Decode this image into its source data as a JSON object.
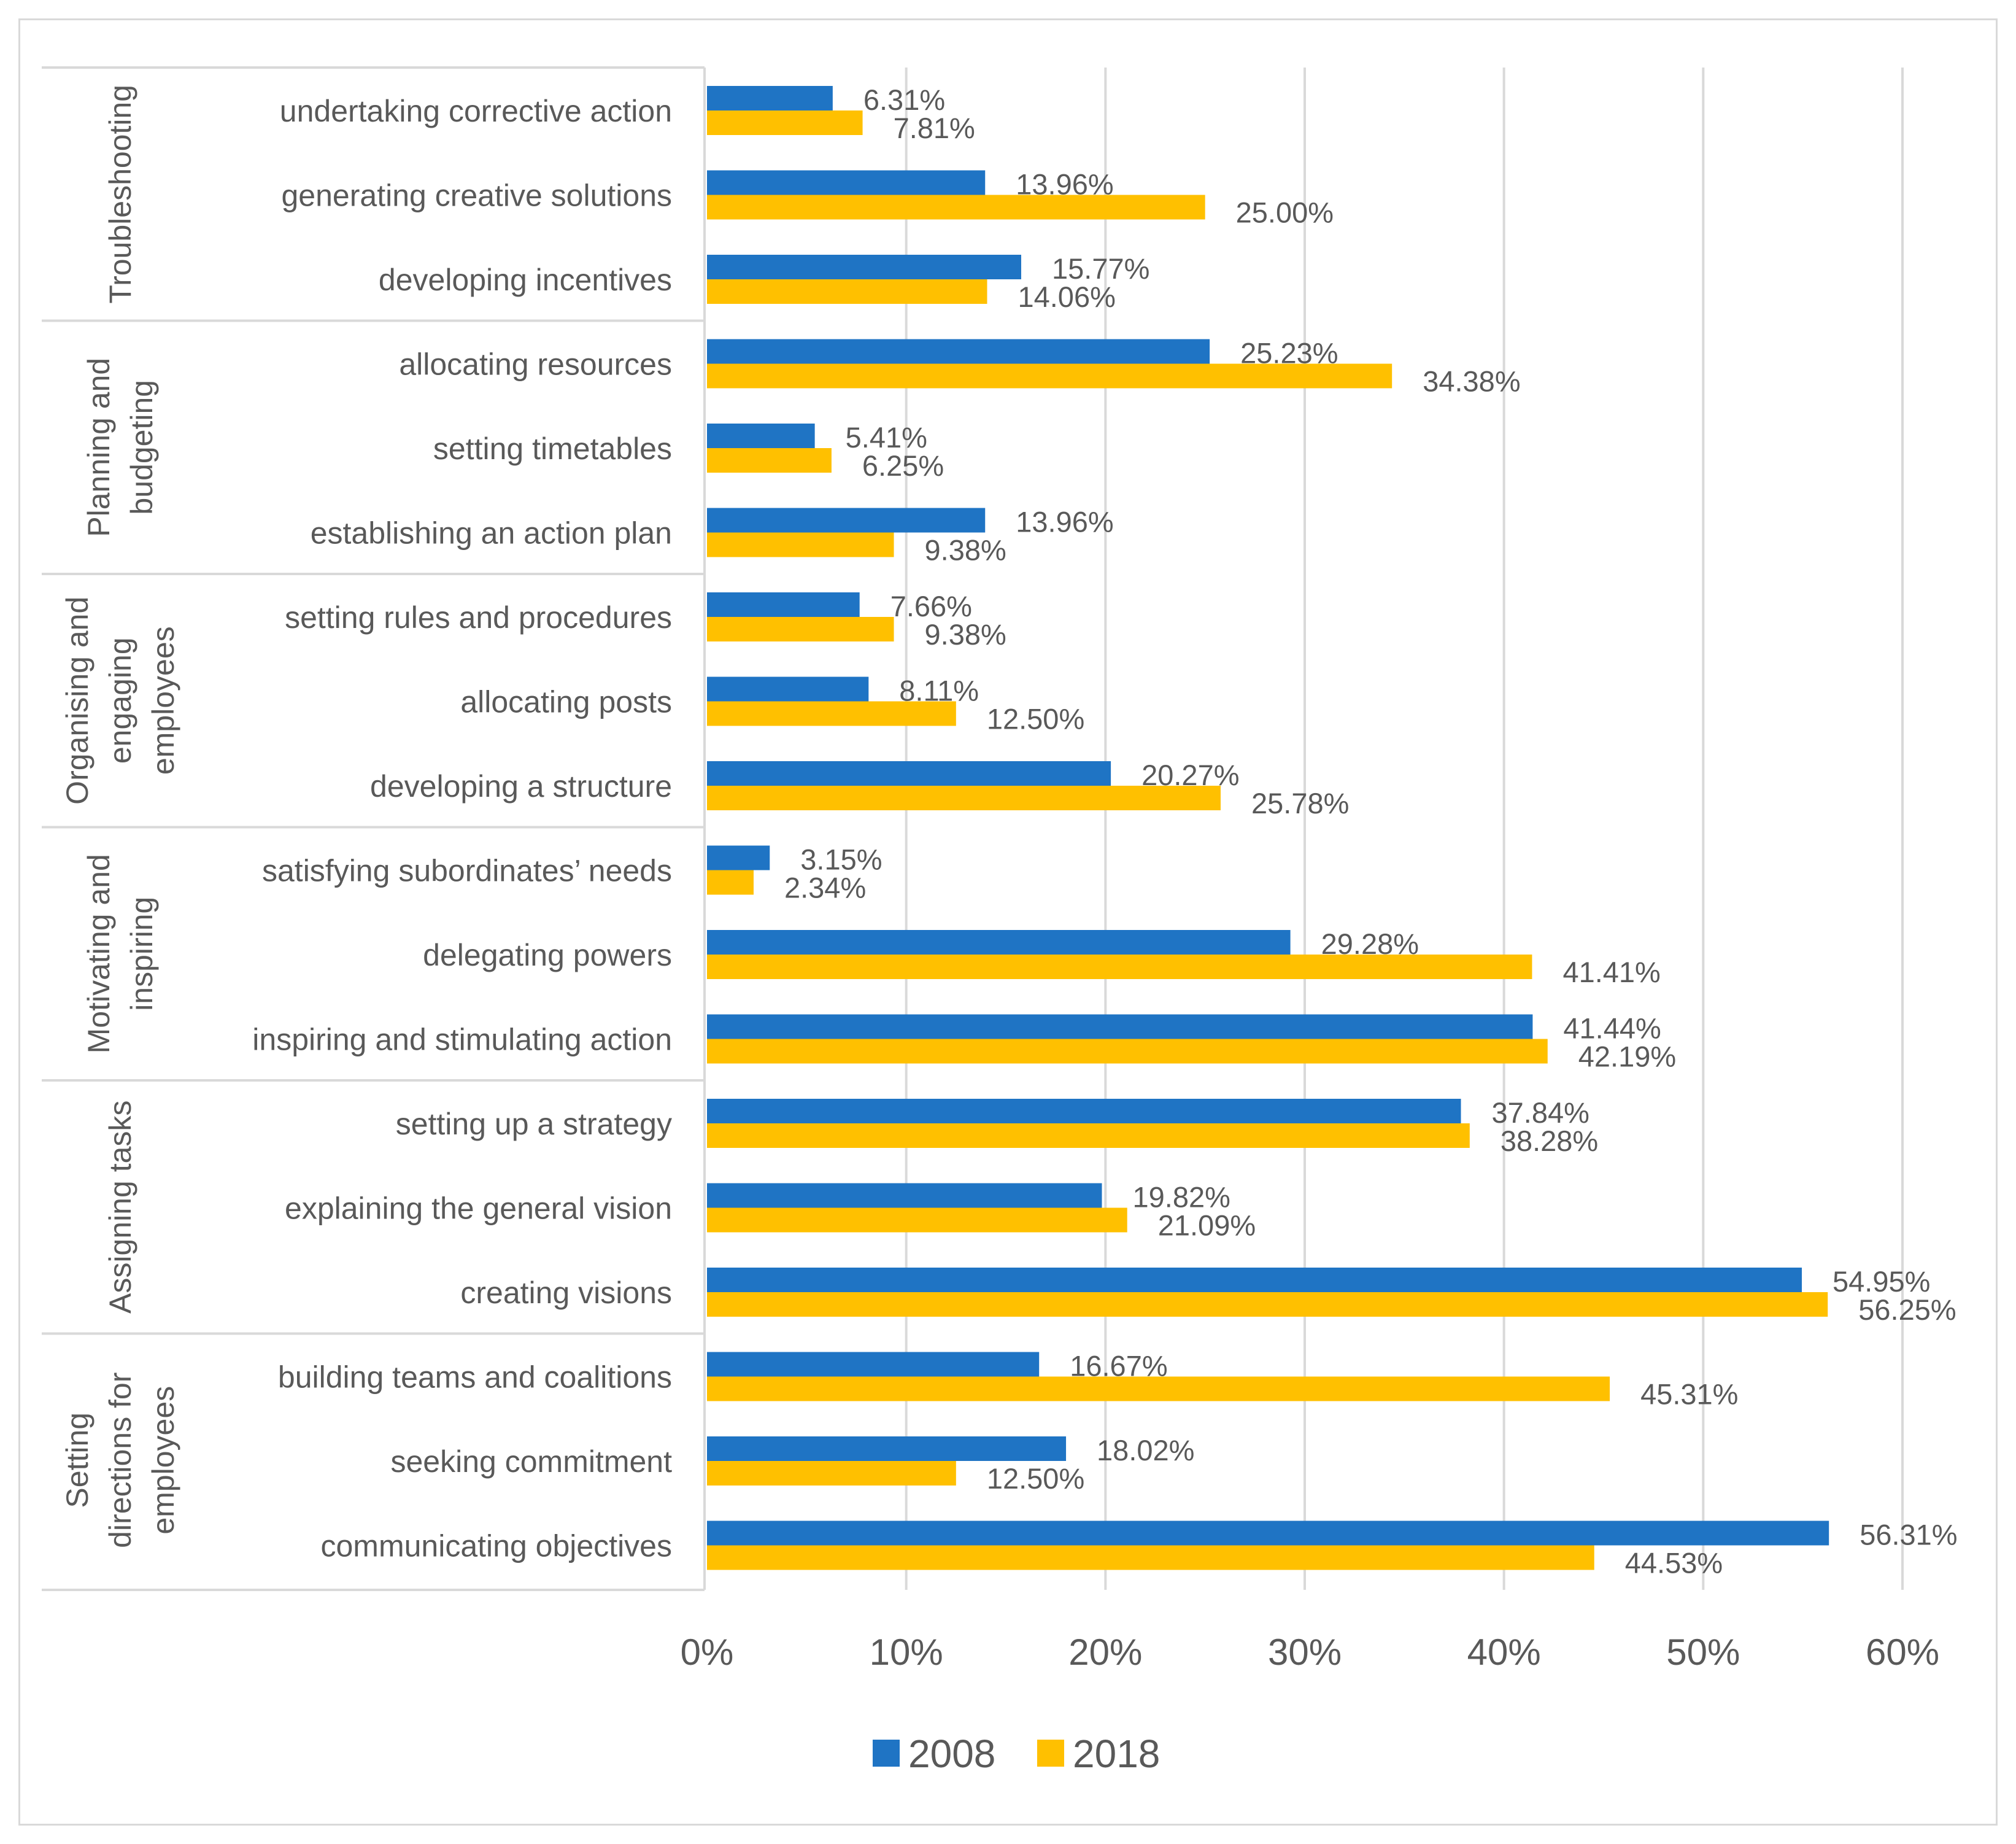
{
  "chart_data": {
    "type": "bar",
    "orientation": "horizontal",
    "groups": [
      {
        "name_lines": [
          "Troubleshooting"
        ],
        "categories": [
          "undertaking corrective action",
          "generating creative solutions",
          "developing incentives"
        ]
      },
      {
        "name_lines": [
          "Planning and",
          "budgeting"
        ],
        "categories": [
          "allocating resources",
          "setting timetables",
          "establishing an action plan"
        ]
      },
      {
        "name_lines": [
          "Organising and",
          "engaging",
          "employees"
        ],
        "categories": [
          "setting rules and procedures",
          "allocating posts",
          "developing a structure"
        ]
      },
      {
        "name_lines": [
          "Motivating and",
          "inspiring"
        ],
        "categories": [
          "satisfying subordinates’ needs",
          "delegating powers",
          "inspiring and stimulating action"
        ]
      },
      {
        "name_lines": [
          "Assigning tasks"
        ],
        "categories": [
          "setting up a strategy",
          "explaining the general vision",
          "creating visions"
        ]
      },
      {
        "name_lines": [
          "Setting",
          "directions for",
          "employees"
        ],
        "categories": [
          "building teams and coalitions",
          "seeking commitment",
          "communicating objectives"
        ]
      }
    ],
    "series": [
      {
        "name": "2008",
        "color": "#1f74c4",
        "values": [
          6.31,
          13.96,
          15.77,
          25.23,
          5.41,
          13.96,
          7.66,
          8.11,
          20.27,
          3.15,
          29.28,
          41.44,
          37.84,
          19.82,
          54.95,
          16.67,
          18.02,
          56.31
        ],
        "labels": [
          "6.31%",
          "13.96%",
          "15.77%",
          "25.23%",
          "5.41%",
          "13.96%",
          "7.66%",
          "8.11%",
          "20.27%",
          "3.15%",
          "29.28%",
          "41.44%",
          "37.84%",
          "19.82%",
          "54.95%",
          "16.67%",
          "18.02%",
          "56.31%"
        ]
      },
      {
        "name": "2018",
        "color": "#ffc000",
        "values": [
          7.81,
          25.0,
          14.06,
          34.38,
          6.25,
          9.38,
          9.38,
          12.5,
          25.78,
          2.34,
          41.41,
          42.19,
          38.28,
          21.09,
          56.25,
          45.31,
          12.5,
          44.53
        ],
        "labels": [
          "7.81%",
          "25.00%",
          "14.06%",
          "34.38%",
          "6.25%",
          "9.38%",
          "9.38%",
          "12.50%",
          "25.78%",
          "2.34%",
          "41.41%",
          "42.19%",
          "38.28%",
          "21.09%",
          "56.25%",
          "45.31%",
          "12.50%",
          "44.53%"
        ]
      }
    ],
    "xlim": [
      0,
      60
    ],
    "xticks": [
      0,
      10,
      20,
      30,
      40,
      50,
      60
    ],
    "xtick_labels": [
      "0%",
      "10%",
      "20%",
      "30%",
      "40%",
      "50%",
      "60%"
    ],
    "grid": true,
    "legend": {
      "placement": "bottom-center",
      "entries": [
        "2008",
        "2018"
      ]
    },
    "gridline_color": "#d9d9d9",
    "text_color": "#595959"
  }
}
